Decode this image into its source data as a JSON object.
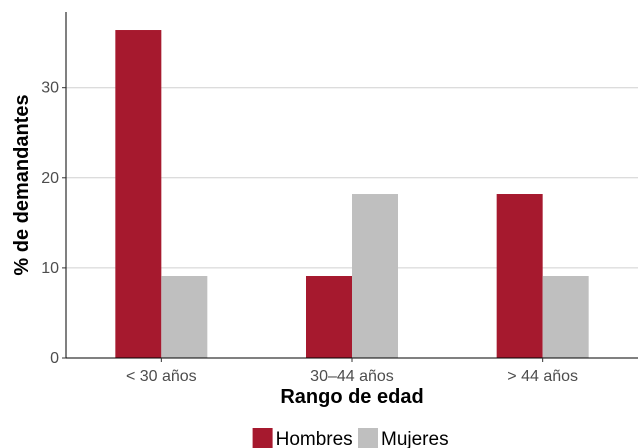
{
  "chart_data": {
    "type": "bar",
    "categories": [
      "< 30 años",
      "30–44 años",
      "> 44 años"
    ],
    "series": [
      {
        "name": "Hombres",
        "values": [
          36.4,
          9.1,
          18.2
        ],
        "color": "#A6192E"
      },
      {
        "name": "Mujeres",
        "values": [
          9.1,
          18.2,
          9.1
        ],
        "color": "#BFBFBF"
      }
    ],
    "xlabel": "Rango de edad",
    "ylabel": "% de demandantes",
    "ylim": [
      0,
      38.4
    ],
    "yticks": [
      0,
      10,
      20,
      30
    ],
    "grid": true,
    "legend_position": "bottom"
  }
}
